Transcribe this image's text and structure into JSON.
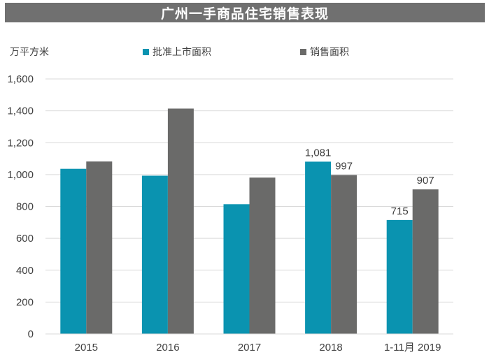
{
  "colors": {
    "series1": "#0a93b0",
    "series2": "#6a6a69",
    "title_bg": "#707070",
    "title_text": "#ffffff",
    "gridline": "#d9d9d9",
    "text": "#404040"
  },
  "chart_data": {
    "type": "bar",
    "title": "广州一手商品住宅销售表现",
    "unit_label": "万平方米",
    "categories": [
      "2015",
      "2016",
      "2017",
      "2018",
      "1-11月 2019"
    ],
    "series": [
      {
        "name": "批准上市面积",
        "values": [
          1036,
          993,
          814,
          1081,
          715
        ],
        "data_labels": [
          "",
          "",
          "",
          "1,081",
          "715"
        ]
      },
      {
        "name": "销售面积",
        "values": [
          1082,
          1414,
          981,
          997,
          907
        ],
        "data_labels": [
          "",
          "",
          "",
          "997",
          "907"
        ]
      }
    ],
    "ylim": [
      0,
      1600
    ],
    "yticks": [
      0,
      200,
      400,
      600,
      800,
      1000,
      1200,
      1400,
      1600
    ],
    "ytick_labels": [
      "0",
      "200",
      "400",
      "600",
      "800",
      "1,000",
      "1,200",
      "1,400",
      "1,600"
    ],
    "grid": true,
    "legend_position": "top"
  }
}
